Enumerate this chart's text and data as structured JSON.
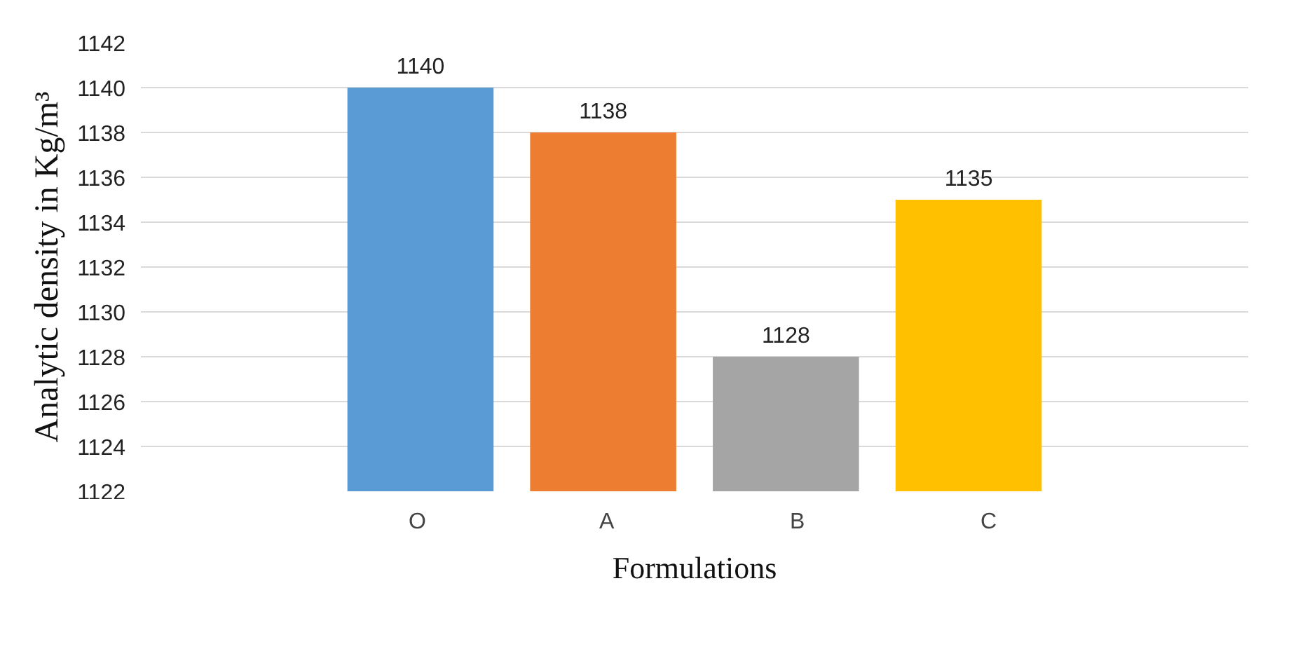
{
  "chart_data": {
    "type": "bar",
    "xlabel": "Formulations",
    "ylabel": "Analytic density in Kg/m³",
    "categories": [
      null
    ],
    "series": [
      {
        "name": "O",
        "color": "#5b9bd5",
        "values": [
          1140
        ]
      },
      {
        "name": "A",
        "color": "#ed7d31",
        "values": [
          1138
        ]
      },
      {
        "name": "B",
        "color": "#a5a5a5",
        "values": [
          1128
        ]
      },
      {
        "name": "C",
        "color": "#ffc000",
        "values": [
          1135
        ]
      }
    ],
    "ylim": [
      1122,
      1142
    ],
    "yticks": [
      1122,
      1124,
      1126,
      1128,
      1130,
      1132,
      1134,
      1136,
      1138,
      1140,
      1142
    ],
    "grid": "y",
    "legend": "bottom",
    "data_labels": true
  }
}
